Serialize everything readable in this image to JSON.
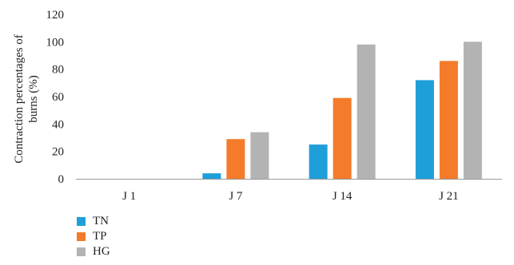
{
  "chart_data": {
    "type": "bar",
    "categories": [
      "J 1",
      "J 7",
      "J 14",
      "J 21"
    ],
    "series": [
      {
        "name": "TN",
        "color": "#1f9fd9",
        "values": [
          0,
          4,
          25,
          72
        ]
      },
      {
        "name": "TP",
        "color": "#f47b2a",
        "values": [
          0,
          29,
          59,
          86
        ]
      },
      {
        "name": "HG",
        "color": "#b3b3b3",
        "values": [
          0,
          34,
          98,
          100
        ]
      }
    ],
    "ylabel_lines": [
      "Contraction percentages of",
      "burns (%)"
    ],
    "ylim": [
      0,
      120
    ],
    "yticks": [
      0,
      20,
      40,
      60,
      80,
      100,
      120
    ],
    "grid": false,
    "legend_position": "bottom-left"
  }
}
